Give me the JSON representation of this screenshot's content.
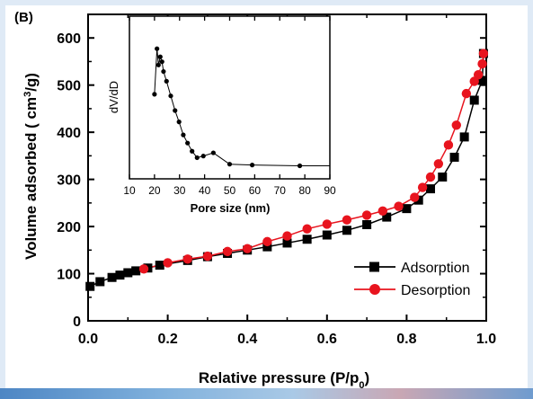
{
  "panel_label": "(B)",
  "chart_data": [
    {
      "type": "line",
      "xlabel": "Relative pressure (P/p0)",
      "ylabel": "Volume adsorbed ( cm3/g)",
      "xlim": [
        0.0,
        1.0
      ],
      "ylim": [
        0,
        650
      ],
      "xticks": [
        "0.0",
        "0.2",
        "0.4",
        "0.6",
        "0.8",
        "1.0"
      ],
      "yticks": [
        "0",
        "100",
        "200",
        "300",
        "400",
        "500",
        "600"
      ],
      "legend_position": "bottom-right",
      "series": [
        {
          "name": "Adsorption",
          "marker": "square",
          "color": "#000000",
          "points": [
            [
              0.005,
              73
            ],
            [
              0.03,
              83
            ],
            [
              0.06,
              92
            ],
            [
              0.08,
              97
            ],
            [
              0.1,
              102
            ],
            [
              0.12,
              106
            ],
            [
              0.15,
              112
            ],
            [
              0.18,
              118
            ],
            [
              0.25,
              128
            ],
            [
              0.3,
              136
            ],
            [
              0.35,
              143
            ],
            [
              0.4,
              150
            ],
            [
              0.45,
              157
            ],
            [
              0.5,
              165
            ],
            [
              0.55,
              173
            ],
            [
              0.6,
              182
            ],
            [
              0.65,
              192
            ],
            [
              0.7,
              204
            ],
            [
              0.75,
              220
            ],
            [
              0.8,
              238
            ],
            [
              0.83,
              256
            ],
            [
              0.86,
              280
            ],
            [
              0.89,
              305
            ],
            [
              0.92,
              347
            ],
            [
              0.945,
              390
            ],
            [
              0.97,
              468
            ],
            [
              0.99,
              510
            ],
            [
              0.993,
              567
            ]
          ]
        },
        {
          "name": "Desorption",
          "marker": "circle",
          "color": "#e8141e",
          "points": [
            [
              0.993,
              567
            ],
            [
              0.99,
              545
            ],
            [
              0.98,
              522
            ],
            [
              0.97,
              508
            ],
            [
              0.95,
              482
            ],
            [
              0.925,
              415
            ],
            [
              0.905,
              373
            ],
            [
              0.88,
              333
            ],
            [
              0.86,
              305
            ],
            [
              0.84,
              283
            ],
            [
              0.82,
              262
            ],
            [
              0.78,
              243
            ],
            [
              0.74,
              233
            ],
            [
              0.7,
              224
            ],
            [
              0.65,
              214
            ],
            [
              0.6,
              205
            ],
            [
              0.55,
              195
            ],
            [
              0.5,
              180
            ],
            [
              0.45,
              168
            ],
            [
              0.4,
              153
            ],
            [
              0.35,
              147
            ],
            [
              0.3,
              137
            ],
            [
              0.25,
              131
            ],
            [
              0.2,
              123
            ],
            [
              0.14,
              110
            ]
          ]
        }
      ]
    },
    {
      "type": "line",
      "inset": true,
      "xlabel": "Pore size (nm)",
      "ylabel": "dV/dD",
      "xlim": [
        10,
        90
      ],
      "xticks": [
        "10",
        "20",
        "30",
        "40",
        "50",
        "60",
        "70",
        "80",
        "90"
      ],
      "series": [
        {
          "marker": "circle",
          "color": "#000000",
          "points": [
            [
              20,
              0.52
            ],
            [
              21,
              0.8
            ],
            [
              21.6,
              0.7
            ],
            [
              22.3,
              0.75
            ],
            [
              23,
              0.72
            ],
            [
              23.6,
              0.66
            ],
            [
              24.8,
              0.6
            ],
            [
              26.5,
              0.51
            ],
            [
              28.2,
              0.42
            ],
            [
              29.8,
              0.35
            ],
            [
              31.5,
              0.27
            ],
            [
              33.2,
              0.22
            ],
            [
              35,
              0.17
            ],
            [
              37,
              0.13
            ],
            [
              39.5,
              0.14
            ],
            [
              43.5,
              0.16
            ],
            [
              50,
              0.09
            ],
            [
              59,
              0.085
            ],
            [
              78,
              0.08
            ],
            [
              90,
              0.08
            ]
          ]
        }
      ]
    }
  ]
}
